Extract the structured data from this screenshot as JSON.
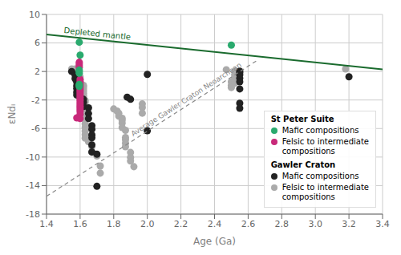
{
  "chart_data": {
    "type": "scatter",
    "xlabel": "Age (Ga)",
    "ylabel": "εNdᵢ",
    "xlim": [
      1.4,
      3.4
    ],
    "ylim": [
      -18,
      10
    ],
    "xticks": [
      1.4,
      1.6,
      1.8,
      {
        "value": 2.0,
        "label": "2.0"
      },
      2.2,
      2.4,
      2.6,
      2.8,
      {
        "value": 3.0,
        "label": "3.0"
      },
      3.2,
      3.4
    ],
    "yticks": [
      -18,
      -14,
      -10,
      -6,
      -2,
      2,
      6,
      10
    ],
    "grid": true,
    "legend": "lower right",
    "series": [
      {
        "name": "Depleted mantle",
        "type": "line",
        "line_style": "solid",
        "color": "#1a6b2e",
        "x": [
          1.4,
          3.4
        ],
        "y": [
          7.2,
          2.3
        ]
      },
      {
        "name": "Average Gawler Craton Neoarchean",
        "type": "line",
        "line_style": "dashed",
        "color": "#888888",
        "x": [
          1.4,
          2.65
        ],
        "y": [
          -15.5,
          3.5
        ]
      },
      {
        "name": "Felsic to intermediate\ncompositions",
        "group": "Gawler Craton",
        "type": "scatter",
        "color": "#aaaaaa",
        "points": [
          [
            1.55,
            2.35
          ],
          [
            1.57,
            2.35
          ],
          [
            1.58,
            1.85
          ],
          [
            1.6,
            1.25
          ],
          [
            1.6,
            0.85
          ],
          [
            1.6,
            0.55
          ],
          [
            1.6,
            0.25
          ],
          [
            1.62,
            0.05
          ],
          [
            1.62,
            -0.15
          ],
          [
            1.62,
            -0.45
          ],
          [
            1.62,
            -0.75
          ],
          [
            1.62,
            -1.05
          ],
          [
            1.62,
            -1.35
          ],
          [
            1.62,
            -1.55
          ],
          [
            1.62,
            -1.85
          ],
          [
            1.63,
            -2.05
          ],
          [
            1.63,
            -2.35
          ],
          [
            1.63,
            -2.85
          ],
          [
            1.63,
            -3.25
          ],
          [
            1.63,
            -3.85
          ],
          [
            1.63,
            -4.05
          ],
          [
            1.63,
            -4.55
          ],
          [
            1.63,
            -4.85
          ],
          [
            1.63,
            -5.35
          ],
          [
            1.63,
            -5.85
          ],
          [
            1.63,
            -6.35
          ],
          [
            1.63,
            -6.85
          ],
          [
            1.63,
            -7.35
          ],
          [
            1.65,
            -7.85
          ],
          [
            1.67,
            -8.55
          ],
          [
            1.67,
            -9.25
          ],
          [
            1.7,
            -9.85
          ],
          [
            1.72,
            -11.25
          ],
          [
            1.72,
            -12.25
          ],
          [
            1.8,
            -3.25
          ],
          [
            1.82,
            -3.55
          ],
          [
            1.83,
            -3.85
          ],
          [
            1.83,
            -4.25
          ],
          [
            1.85,
            -4.55
          ],
          [
            1.85,
            -4.85
          ],
          [
            1.85,
            -5.25
          ],
          [
            1.85,
            -5.85
          ],
          [
            1.87,
            -6.25
          ],
          [
            1.87,
            -7.25
          ],
          [
            1.87,
            -7.55
          ],
          [
            1.87,
            -8.05
          ],
          [
            1.87,
            -8.55
          ],
          [
            1.9,
            -9.35
          ],
          [
            1.9,
            -10.05
          ],
          [
            1.9,
            -10.55
          ],
          [
            1.92,
            -11.35
          ],
          [
            1.97,
            -2.55
          ],
          [
            1.97,
            -3.05
          ],
          [
            1.97,
            -3.85
          ],
          [
            2.47,
            2.25
          ],
          [
            2.5,
            0.55
          ],
          [
            2.5,
            0.05
          ],
          [
            2.5,
            -0.25
          ],
          [
            2.52,
            0.35
          ],
          [
            2.52,
            0.55
          ],
          [
            2.52,
            0.85
          ],
          [
            2.52,
            1.05
          ],
          [
            2.52,
            1.55
          ],
          [
            2.52,
            2.05
          ],
          [
            3.18,
            2.35
          ]
        ]
      },
      {
        "name": "Mafic compositions",
        "group": "Gawler Craton",
        "type": "scatter",
        "color": "#222222",
        "points": [
          [
            1.55,
            2.0
          ],
          [
            1.57,
            1.5
          ],
          [
            1.57,
            1.0
          ],
          [
            1.58,
            0.5
          ],
          [
            1.58,
            0.0
          ],
          [
            1.58,
            -0.4
          ],
          [
            1.58,
            -0.9
          ],
          [
            1.58,
            -1.3
          ],
          [
            1.6,
            -1.6
          ],
          [
            1.62,
            -1.9
          ],
          [
            1.62,
            -2.3
          ],
          [
            1.62,
            -2.9
          ],
          [
            1.65,
            -3.1
          ],
          [
            1.65,
            -3.9
          ],
          [
            1.65,
            -4.6
          ],
          [
            1.67,
            -5.6
          ],
          [
            1.67,
            -6.1
          ],
          [
            1.67,
            -6.9
          ],
          [
            1.67,
            -7.3
          ],
          [
            1.67,
            -8.3
          ],
          [
            1.67,
            -9.3
          ],
          [
            1.7,
            -9.6
          ],
          [
            1.7,
            -14.1
          ],
          [
            1.88,
            -1.6
          ],
          [
            1.9,
            -1.9
          ],
          [
            2.0,
            1.6
          ],
          [
            2.0,
            -6.3
          ],
          [
            2.55,
            2.05
          ],
          [
            2.55,
            1.85
          ],
          [
            2.55,
            1.55
          ],
          [
            2.55,
            1.05
          ],
          [
            2.55,
            0.55
          ],
          [
            2.55,
            -0.45
          ],
          [
            2.55,
            -2.45
          ],
          [
            2.55,
            -3.15
          ],
          [
            3.2,
            1.25
          ]
        ]
      },
      {
        "name": "Felsic to intermediate\ncompositions",
        "group": "St Peter Suite",
        "type": "scatter",
        "color": "#c8297a",
        "points": [
          [
            1.595,
            3.3
          ],
          [
            1.595,
            3.05
          ],
          [
            1.595,
            2.8
          ],
          [
            1.595,
            2.55
          ],
          [
            1.6,
            0.9
          ],
          [
            1.6,
            0.6
          ],
          [
            1.6,
            0.35
          ],
          [
            1.6,
            0.1
          ],
          [
            1.6,
            -0.1
          ],
          [
            1.6,
            -0.35
          ],
          [
            1.6,
            -0.6
          ],
          [
            1.6,
            -0.85
          ],
          [
            1.6,
            -1.1
          ],
          [
            1.6,
            -1.35
          ],
          [
            1.6,
            -1.6
          ],
          [
            1.6,
            -1.85
          ],
          [
            1.6,
            -2.1
          ],
          [
            1.6,
            -2.35
          ],
          [
            1.6,
            -2.6
          ],
          [
            1.6,
            -2.85
          ],
          [
            1.6,
            -3.1
          ],
          [
            1.6,
            -3.35
          ],
          [
            1.6,
            -3.6
          ],
          [
            1.6,
            -4.0
          ],
          [
            1.58,
            -4.5
          ],
          [
            1.6,
            -4.6
          ]
        ]
      },
      {
        "name": "Mafic compositions",
        "group": "St Peter Suite",
        "type": "scatter",
        "color": "#2aaa6e",
        "points": [
          [
            1.595,
            6.1
          ],
          [
            1.6,
            4.3
          ],
          [
            1.595,
            2.2
          ],
          [
            1.595,
            1.95
          ],
          [
            1.595,
            1.75
          ],
          [
            1.595,
            0.2
          ],
          [
            1.595,
            0.05
          ],
          [
            1.595,
            -0.1
          ],
          [
            2.5,
            5.7
          ]
        ]
      }
    ]
  }
}
